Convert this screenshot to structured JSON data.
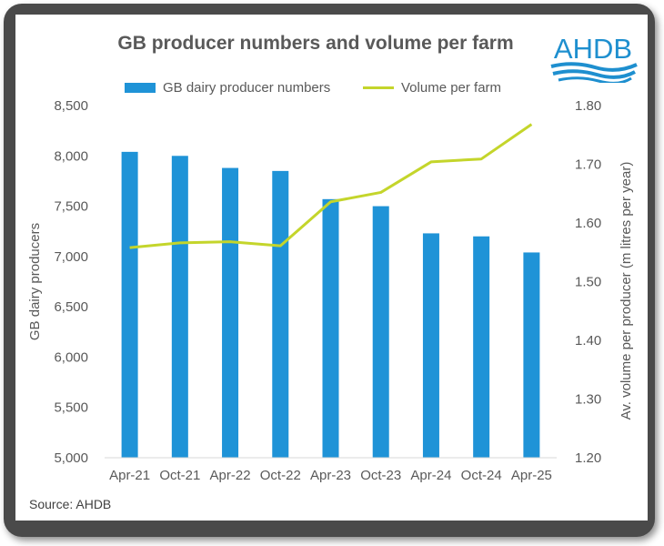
{
  "chart_data": {
    "type": "bar",
    "title": "GB producer numbers and volume per farm",
    "categories": [
      "Apr-21",
      "Oct-21",
      "Apr-22",
      "Oct-22",
      "Apr-23",
      "Oct-23",
      "Apr-24",
      "Oct-24",
      "Apr-25"
    ],
    "series": [
      {
        "name": "GB dairy producer numbers",
        "kind": "bar",
        "axis": "left",
        "color": "#1f93d7",
        "values": [
          8040,
          8000,
          7880,
          7850,
          7570,
          7500,
          7230,
          7200,
          7040
        ]
      },
      {
        "name": "Volume per farm",
        "kind": "line",
        "axis": "right",
        "color": "#c4d52b",
        "values": [
          1.558,
          1.566,
          1.568,
          1.561,
          1.636,
          1.652,
          1.704,
          1.709,
          1.768
        ]
      }
    ],
    "ylabel": "GB dairy producers",
    "y2label": "Av. volume per producer (m litres per year)",
    "ylim": [
      5000,
      8500
    ],
    "y2lim": [
      1.2,
      1.8
    ],
    "yticks": [
      "5,000",
      "5,500",
      "6,000",
      "6,500",
      "7,000",
      "7,500",
      "8,000",
      "8,500"
    ],
    "y2ticks": [
      "1.20",
      "1.30",
      "1.40",
      "1.50",
      "1.60",
      "1.70",
      "1.80"
    ],
    "legend_position": "top",
    "grid": false
  },
  "logo_text": "AHDB",
  "source": "Source: AHDB"
}
